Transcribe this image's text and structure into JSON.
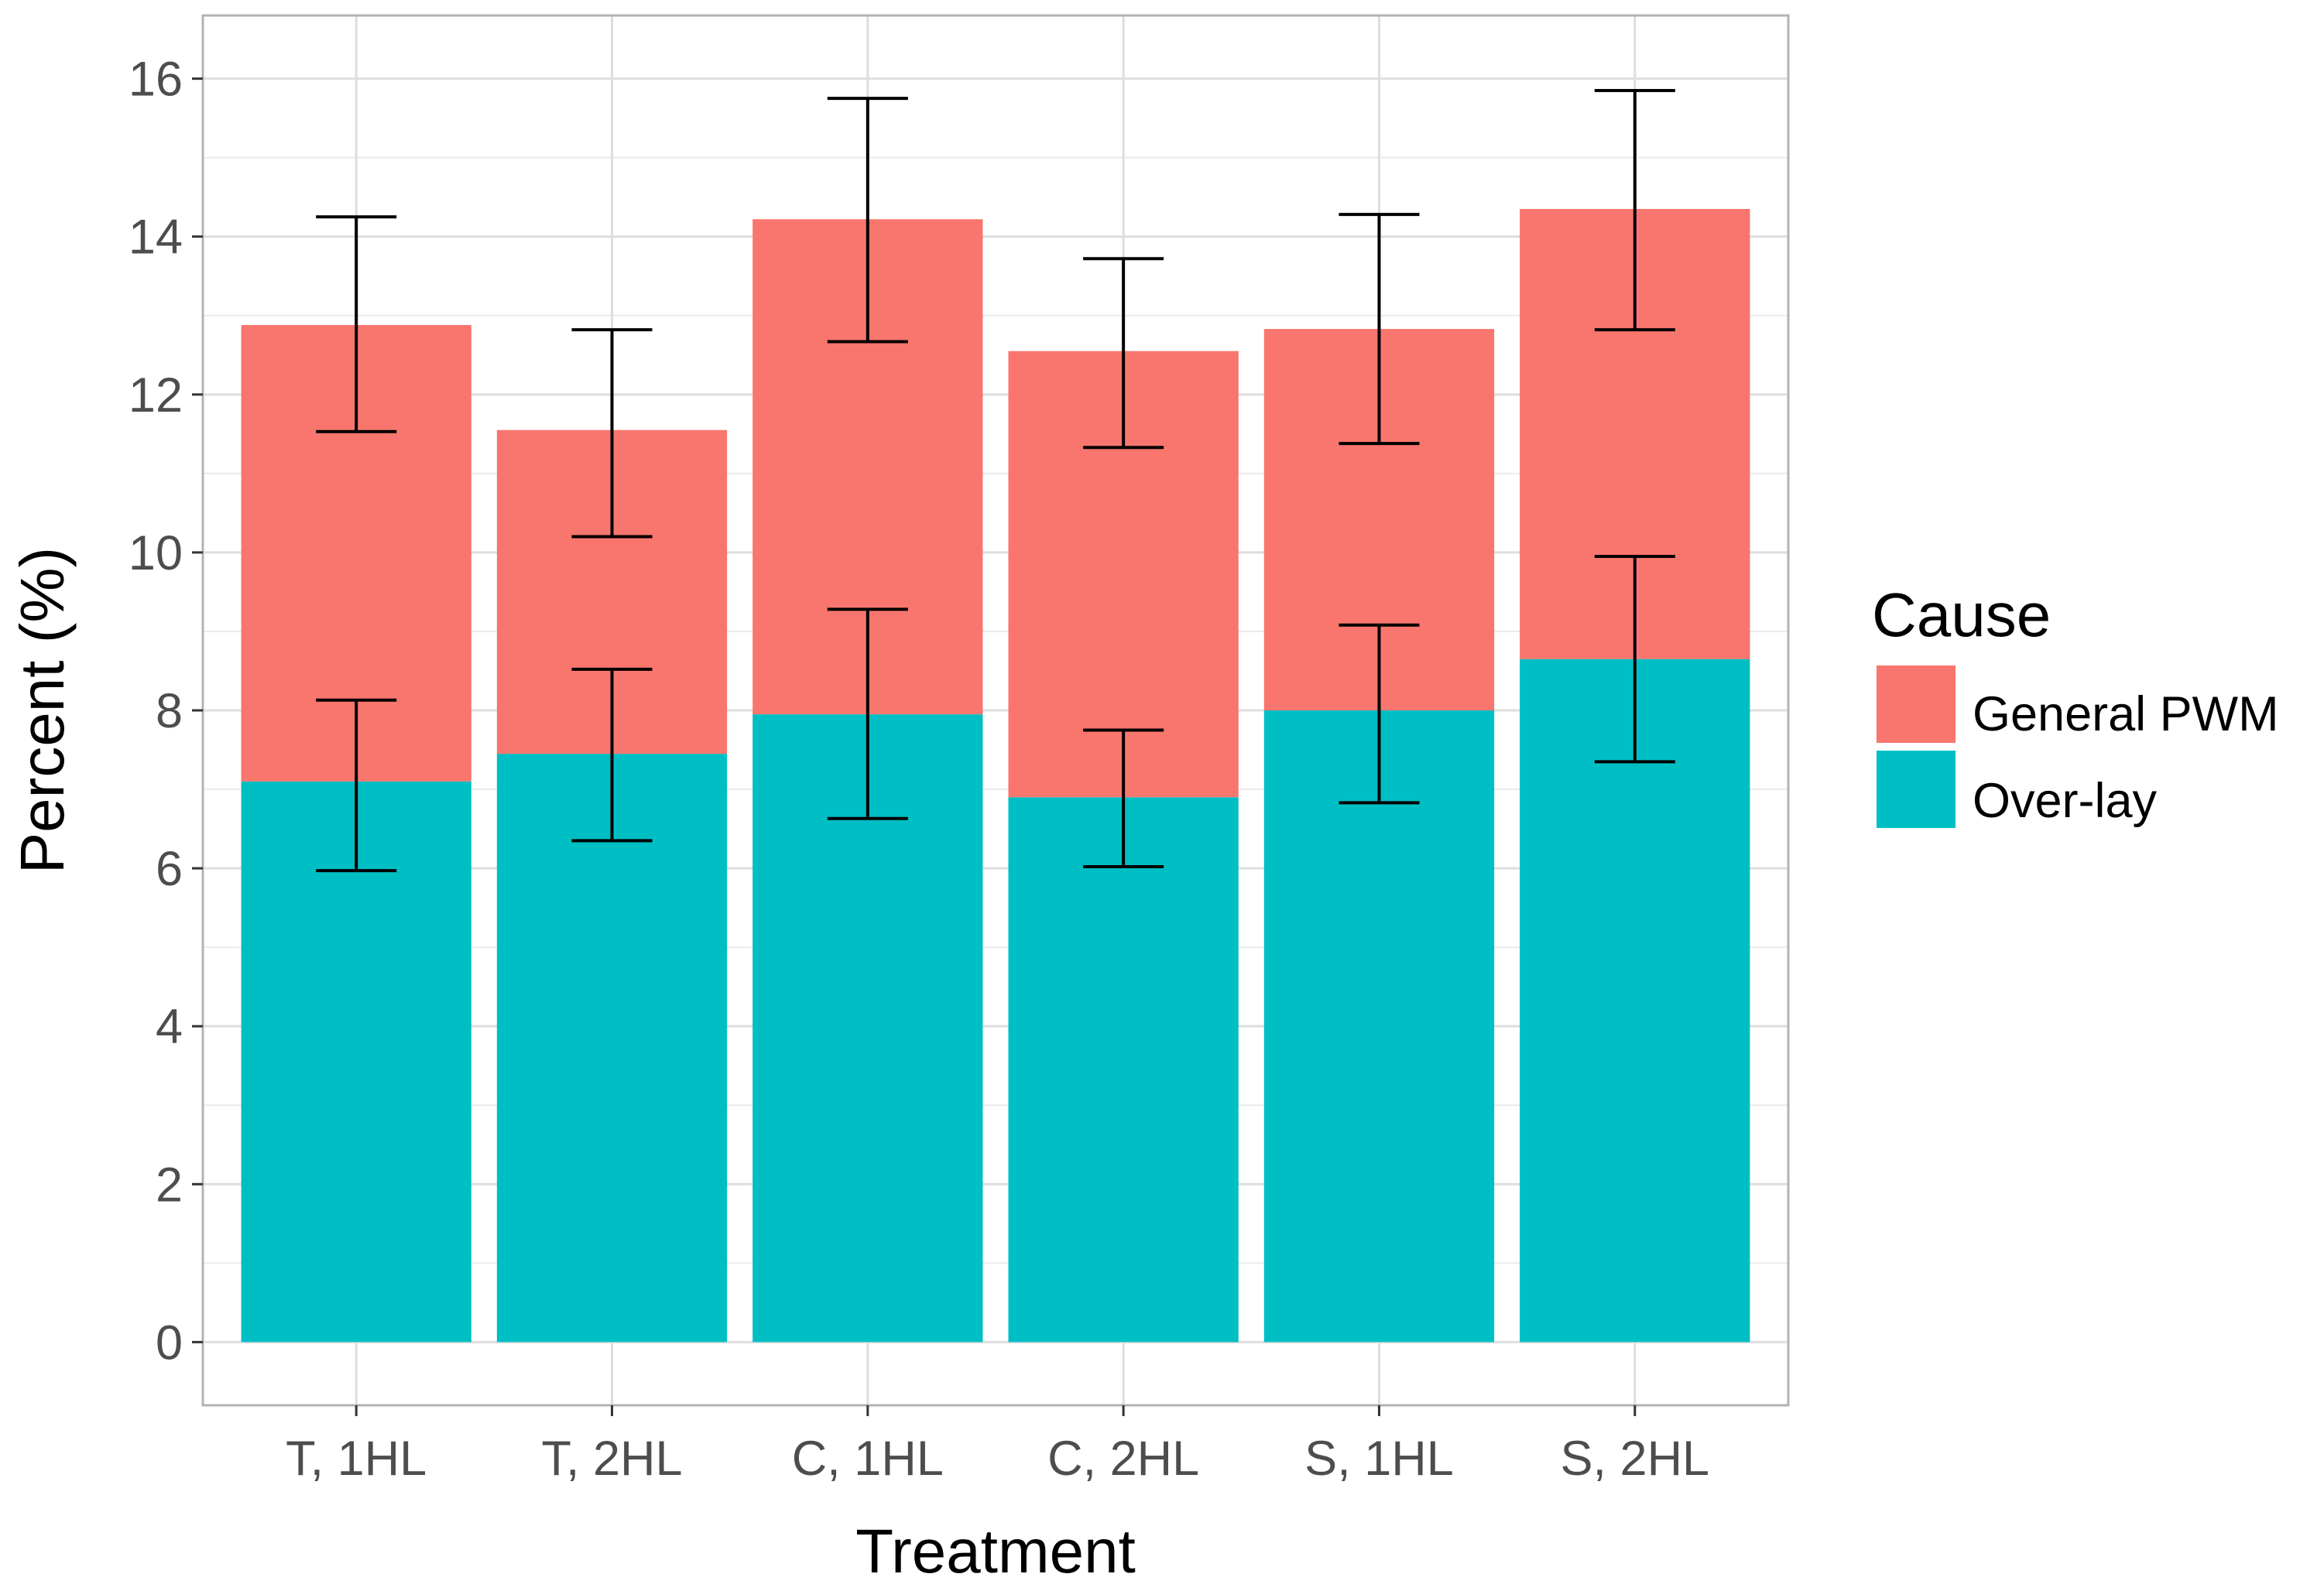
{
  "chart_data": {
    "type": "bar",
    "stacked": true,
    "title": "",
    "xlabel": "Treatment",
    "ylabel": "Percent (%)",
    "ylim": [
      -0.8,
      16.8
    ],
    "yticks": [
      0,
      2,
      4,
      6,
      8,
      10,
      12,
      14,
      16
    ],
    "ytick_labels": [
      "0",
      "2",
      "4",
      "6",
      "8",
      "10",
      "12",
      "14",
      "16"
    ],
    "grid": true,
    "categories": [
      "T, 1HL",
      "T, 2HL",
      "C, 1HL",
      "C, 2HL",
      "S, 1HL",
      "S, 2HL"
    ],
    "series": [
      {
        "name": "Over-lay",
        "color": "#00BFC4",
        "values": [
          7.1,
          7.45,
          7.95,
          6.9,
          8.0,
          8.65
        ],
        "error_low": [
          5.97,
          6.35,
          6.63,
          6.02,
          6.83,
          7.35
        ],
        "error_high": [
          8.13,
          8.52,
          9.28,
          7.75,
          9.08,
          9.95
        ]
      },
      {
        "name": "General PWM",
        "color": "#F8766D",
        "values": [
          5.78,
          4.1,
          6.27,
          5.65,
          4.83,
          5.7
        ],
        "totals": [
          12.88,
          11.55,
          14.22,
          12.55,
          12.83,
          14.35
        ],
        "error_low": [
          11.53,
          10.2,
          12.67,
          11.33,
          11.38,
          12.82
        ],
        "error_high": [
          14.25,
          12.82,
          15.75,
          13.72,
          14.28,
          15.85
        ]
      }
    ],
    "legend": {
      "title": "Cause",
      "position": "right",
      "entries": [
        {
          "label": "General PWM",
          "color": "#F8766D"
        },
        {
          "label": "Over-lay",
          "color": "#00BFC4"
        }
      ]
    }
  }
}
